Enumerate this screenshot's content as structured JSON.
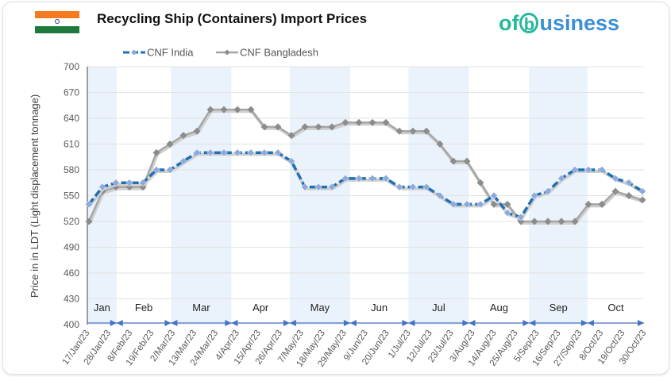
{
  "header": {
    "title": "Recycling Ship (Containers) Import Prices",
    "logo_text": "ofbusiness",
    "flag": "india-flag"
  },
  "colors": {
    "india": "#1f6fb4",
    "india_marker": "#8fa9db",
    "bangladesh": "#a6a6a6",
    "bangladesh_marker": "#8c8c8c",
    "band": "#eaf2fb",
    "arrow": "#4472c4"
  },
  "chart_data": {
    "type": "line",
    "title": "Recycling Ship (Containers) Import Prices",
    "ylabel": "Price in in LDT (Light displacement tonnage)",
    "xlabel": "",
    "ylim": [
      400,
      700
    ],
    "yticks": [
      "400",
      "430",
      "460",
      "490",
      "520",
      "550",
      "580",
      "610",
      "640",
      "670",
      "700"
    ],
    "x_start": "2023-01-17",
    "x_end": "2023-10-30",
    "point_step_days": 7,
    "xticks": [
      "17/Jan/23",
      "28/Jan/23",
      "8/Feb/23",
      "19/Feb/23",
      "2/Mar/23",
      "13/Mar/23",
      "24/Mar/23",
      "4/Apr/23",
      "15/Apr/23",
      "26/Apr/23",
      "7/May/23",
      "18/May/23",
      "29/May/23",
      "9/Jun/23",
      "20/Jun/23",
      "1/Jul/23",
      "12/Jul/23",
      "23/Jul/23",
      "3/Aug/23",
      "14/Aug/23",
      "25/Aug/23",
      "5/Sep/23",
      "16/Sep/23",
      "27/Sep/23",
      "8/Oct/23",
      "19/Oct/23",
      "30/Oct/23"
    ],
    "months": [
      {
        "label": "Jan",
        "start": "2023-01-17",
        "end": "2023-02-01",
        "shaded": true
      },
      {
        "label": "Feb",
        "start": "2023-02-01",
        "end": "2023-03-01",
        "shaded": false
      },
      {
        "label": "Mar",
        "start": "2023-03-01",
        "end": "2023-04-01",
        "shaded": true
      },
      {
        "label": "Apr",
        "start": "2023-04-01",
        "end": "2023-05-01",
        "shaded": false
      },
      {
        "label": "May",
        "start": "2023-05-01",
        "end": "2023-06-01",
        "shaded": true
      },
      {
        "label": "Jun",
        "start": "2023-06-01",
        "end": "2023-07-01",
        "shaded": false
      },
      {
        "label": "Jul",
        "start": "2023-07-01",
        "end": "2023-08-01",
        "shaded": true
      },
      {
        "label": "Aug",
        "start": "2023-08-01",
        "end": "2023-09-01",
        "shaded": false
      },
      {
        "label": "Sep",
        "start": "2023-09-01",
        "end": "2023-10-01",
        "shaded": true
      },
      {
        "label": "Oct",
        "start": "2023-10-01",
        "end": "2023-10-30",
        "shaded": false
      }
    ],
    "legend_position": "top-center",
    "grid": true,
    "series": [
      {
        "name": "CNF India",
        "values": [
          540,
          560,
          565,
          565,
          565,
          580,
          580,
          590,
          600,
          600,
          600,
          600,
          600,
          600,
          600,
          590,
          560,
          560,
          560,
          570,
          570,
          570,
          570,
          560,
          560,
          560,
          550,
          540,
          540,
          540,
          550,
          530,
          525,
          550,
          555,
          570,
          580,
          580,
          580,
          570,
          565,
          555
        ]
      },
      {
        "name": "CNF Bangladesh",
        "values": [
          520,
          555,
          560,
          560,
          560,
          600,
          610,
          620,
          625,
          650,
          650,
          650,
          650,
          630,
          630,
          620,
          630,
          630,
          630,
          635,
          635,
          635,
          635,
          625,
          625,
          625,
          610,
          590,
          590,
          565,
          540,
          540,
          520,
          520,
          520,
          520,
          520,
          540,
          540,
          555,
          550,
          545
        ]
      }
    ]
  }
}
